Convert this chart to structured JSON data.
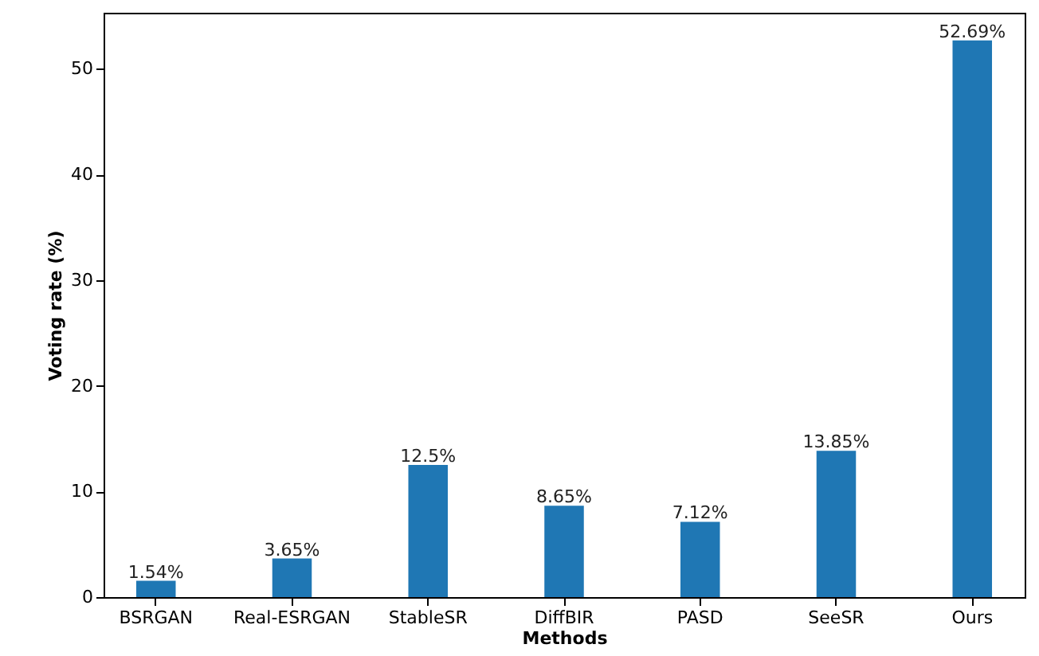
{
  "chart_data": {
    "type": "bar",
    "xlabel": "Methods",
    "ylabel": "Voting rate (%)",
    "categories": [
      "BSRGAN",
      "Real-ESRGAN",
      "StableSR",
      "DiffBIR",
      "PASD",
      "SeeSR",
      "Ours"
    ],
    "values": [
      1.54,
      3.65,
      12.5,
      8.65,
      7.12,
      13.85,
      52.69
    ],
    "value_labels": [
      "1.54%",
      "3.65%",
      "12.5%",
      "8.65%",
      "7.12%",
      "13.85%",
      "52.69%"
    ],
    "color": "#1f77b4",
    "ylim": [
      0,
      55.3
    ],
    "yticks": [
      0,
      10,
      20,
      30,
      40,
      50
    ],
    "grid": false
  }
}
